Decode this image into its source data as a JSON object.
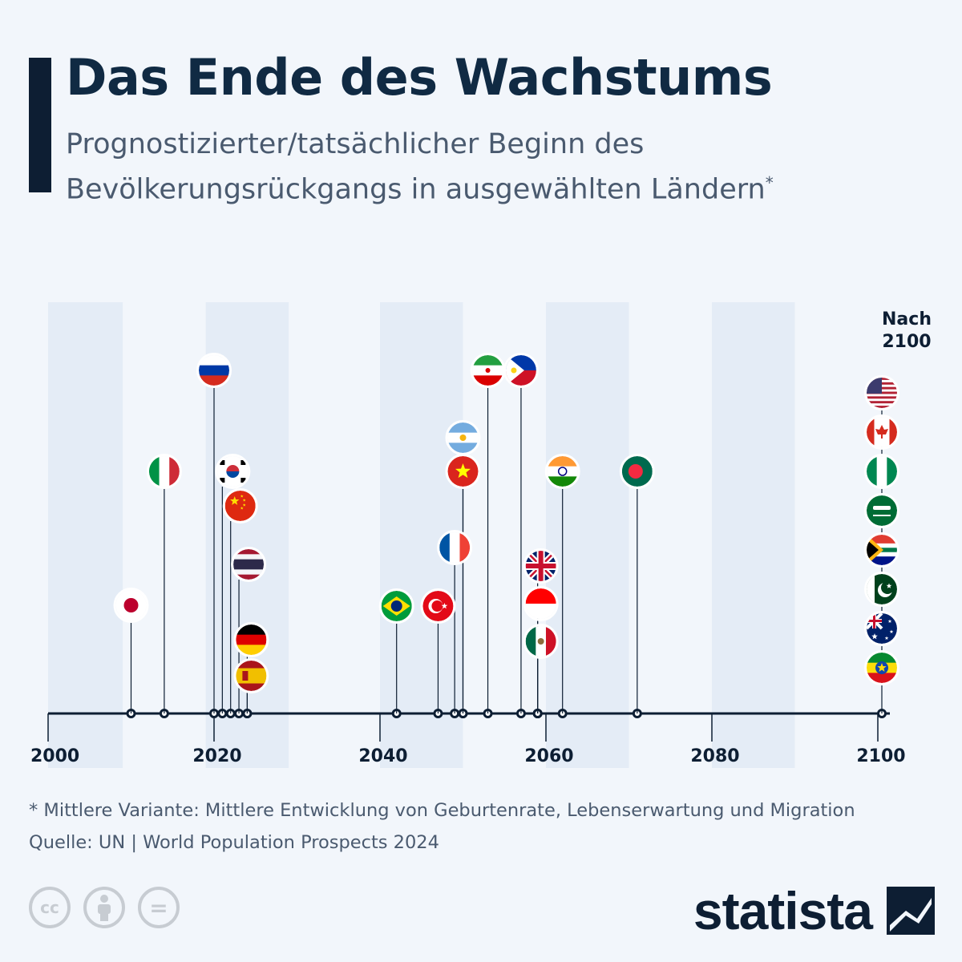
{
  "header": {
    "title": "Das Ende des Wachstums",
    "subtitle": "Prognostizierter/tatsächlicher Beginn des Bevölkerungsrückgangs in ausgewählten Ländern",
    "subtitle_mark": "*"
  },
  "chart_data": {
    "type": "timeline",
    "x_ticks": [
      2000,
      2020,
      2040,
      2060,
      2080,
      2100
    ],
    "xlim": [
      2000,
      2102
    ],
    "shaded_bands": [
      [
        2000,
        2009
      ],
      [
        2019,
        2029
      ],
      [
        2040,
        2050
      ],
      [
        2060,
        2070
      ],
      [
        2080,
        2090
      ]
    ],
    "after_2100_label": [
      "Nach",
      "2100"
    ],
    "events": [
      {
        "country": "Japan",
        "flag": "japan-flag",
        "year": 2010
      },
      {
        "country": "Italien",
        "flag": "italy-flag",
        "year": 2014
      },
      {
        "country": "Russland",
        "flag": "russia-flag",
        "year": 2020
      },
      {
        "country": "Südkorea",
        "flag": "south-korea-flag",
        "year": 2021
      },
      {
        "country": "China",
        "flag": "china-flag",
        "year": 2022
      },
      {
        "country": "Thailand",
        "flag": "thailand-flag",
        "year": 2023
      },
      {
        "country": "Deutschland",
        "flag": "germany-flag",
        "year": 2024
      },
      {
        "country": "Spanien",
        "flag": "spain-flag",
        "year": 2024
      },
      {
        "country": "Brasilien",
        "flag": "brazil-flag",
        "year": 2042
      },
      {
        "country": "Türkei",
        "flag": "turkey-flag",
        "year": 2047
      },
      {
        "country": "Frankreich",
        "flag": "france-flag",
        "year": 2049
      },
      {
        "country": "Argentinien",
        "flag": "argentina-flag",
        "year": 2050
      },
      {
        "country": "Vietnam",
        "flag": "vietnam-flag",
        "year": 2050
      },
      {
        "country": "Iran",
        "flag": "iran-flag",
        "year": 2053
      },
      {
        "country": "Philippinen",
        "flag": "philippines-flag",
        "year": 2057
      },
      {
        "country": "Großbritannien",
        "flag": "uk-flag",
        "year": 2059
      },
      {
        "country": "Indonesien",
        "flag": "indonesia-flag",
        "year": 2059
      },
      {
        "country": "Mexiko",
        "flag": "mexico-flag",
        "year": 2059
      },
      {
        "country": "Indien",
        "flag": "india-flag",
        "year": 2062
      },
      {
        "country": "Bangladesch",
        "flag": "bangladesh-flag",
        "year": 2071
      },
      {
        "country": "USA",
        "flag": "usa-flag",
        "year": "Nach 2100"
      },
      {
        "country": "Kanada",
        "flag": "canada-flag",
        "year": "Nach 2100"
      },
      {
        "country": "Nigeria",
        "flag": "nigeria-flag",
        "year": "Nach 2100"
      },
      {
        "country": "Saudi-Arabien",
        "flag": "saudi-arabia-flag",
        "year": "Nach 2100"
      },
      {
        "country": "Südafrika",
        "flag": "south-africa-flag",
        "year": "Nach 2100"
      },
      {
        "country": "Pakistan",
        "flag": "pakistan-flag",
        "year": "Nach 2100"
      },
      {
        "country": "Australien",
        "flag": "australia-flag",
        "year": "Nach 2100"
      },
      {
        "country": "Äthiopien",
        "flag": "ethiopia-flag",
        "year": "Nach 2100"
      }
    ]
  },
  "footer": {
    "footnote": "* Mittlere Variante: Mittlere Entwicklung von Geburtenrate, Lebenserwartung und Migration",
    "source": "Quelle: UN | World Population Prospects 2024",
    "cc_icons": [
      "cc-icon",
      "by-icon",
      "nd-icon"
    ],
    "cc_text": "cc",
    "nd_text": "="
  },
  "brand": {
    "name": "statista"
  },
  "colors": {
    "navy": "#0d1e33",
    "band": "#e4ecf6",
    "subtitle": "#4a5a6f"
  }
}
